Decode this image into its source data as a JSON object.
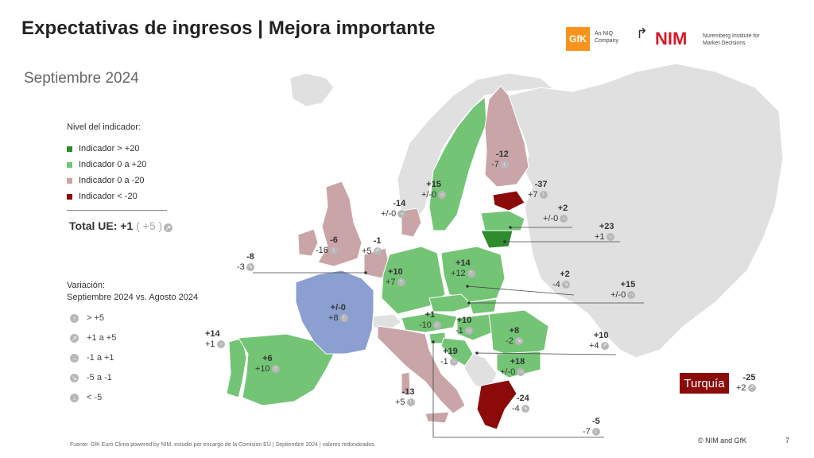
{
  "header": {
    "title": "Expectativas de ingresos | Mejora importante",
    "subtitle": "Septiembre 2024"
  },
  "logos": {
    "gfk": "GfK",
    "gfk_sub": "An NIQ Company",
    "nim": "NIM",
    "nim_sub": "Nuremberg Institute for Market Decisions"
  },
  "legend": {
    "title": "Nivel del indicador:",
    "items": [
      {
        "label": "Indicador > +20",
        "color": "#2e8b2e"
      },
      {
        "label": "Indicador 0 a +20",
        "color": "#74c476"
      },
      {
        "label": "Indicador 0 a -20",
        "color": "#c9a5a8"
      },
      {
        "label": "Indicador < -20",
        "color": "#8b0a0a"
      }
    ],
    "total_label": "Total UE: +1",
    "total_change": "( +5 )"
  },
  "variation": {
    "title_line1": "Variación:",
    "title_line2": "Septiembre 2024 vs. Agosto 2024",
    "items": [
      {
        "label": "> +5",
        "icon": "arrow-up-icon"
      },
      {
        "label": "+1 a +5",
        "icon": "arrow-up-right-icon"
      },
      {
        "label": "-1 a +1",
        "icon": "arrow-right-icon"
      },
      {
        "label": "-5 a -1",
        "icon": "arrow-down-right-icon"
      },
      {
        "label": "< -5",
        "icon": "arrow-down-icon"
      }
    ]
  },
  "countries": [
    {
      "id": "spain",
      "value": "+6",
      "change": "+10"
    },
    {
      "id": "portugal",
      "value": "+14",
      "change": "+1"
    },
    {
      "id": "france",
      "value": "+/-0",
      "change": "+8"
    },
    {
      "id": "ireland",
      "value": "-8",
      "change": "-3"
    },
    {
      "id": "uk",
      "value": "-6",
      "change": "-16"
    },
    {
      "id": "netherlands",
      "value": "-1",
      "change": "+5"
    },
    {
      "id": "denmark",
      "value": "-14",
      "change": "+/-0"
    },
    {
      "id": "sweden",
      "value": "+15",
      "change": "+/-0"
    },
    {
      "id": "finland",
      "value": "-12",
      "change": "-7"
    },
    {
      "id": "estonia",
      "value": "-37",
      "change": "+7"
    },
    {
      "id": "latvia",
      "value": "+2",
      "change": "+/-0"
    },
    {
      "id": "lithuania",
      "value": "+23",
      "change": "+1"
    },
    {
      "id": "germany",
      "value": "+10",
      "change": "+7"
    },
    {
      "id": "poland",
      "value": "+14",
      "change": "+12"
    },
    {
      "id": "czechia",
      "value": "+2",
      "change": "-4"
    },
    {
      "id": "slovakia",
      "value": "+15",
      "change": "+/-0"
    },
    {
      "id": "austria",
      "value": "+1",
      "change": "-10"
    },
    {
      "id": "hungary",
      "value": "+10",
      "change": "-1"
    },
    {
      "id": "romania",
      "value": "+8",
      "change": "-2"
    },
    {
      "id": "bulgaria",
      "value": "+18",
      "change": "+/-0"
    },
    {
      "id": "croatia",
      "value": "+19",
      "change": "-1"
    },
    {
      "id": "slovenia",
      "value": "+10",
      "change": "+4"
    },
    {
      "id": "italy",
      "value": "-13",
      "change": "+5"
    },
    {
      "id": "greece",
      "value": "-24",
      "change": "-4"
    },
    {
      "id": "malta",
      "value": "-5",
      "change": "-7"
    },
    {
      "id": "turkey",
      "value": "-25",
      "change": "+2"
    }
  ],
  "turkey_label": "Turquía",
  "footer": "Fuente: GfK Euro Clima powered by NIM, estudio por encargo de la Comisión EU | Septiembre 2024 | valores redondeados",
  "copyright": "© NIM and GfK",
  "page_number": "7"
}
